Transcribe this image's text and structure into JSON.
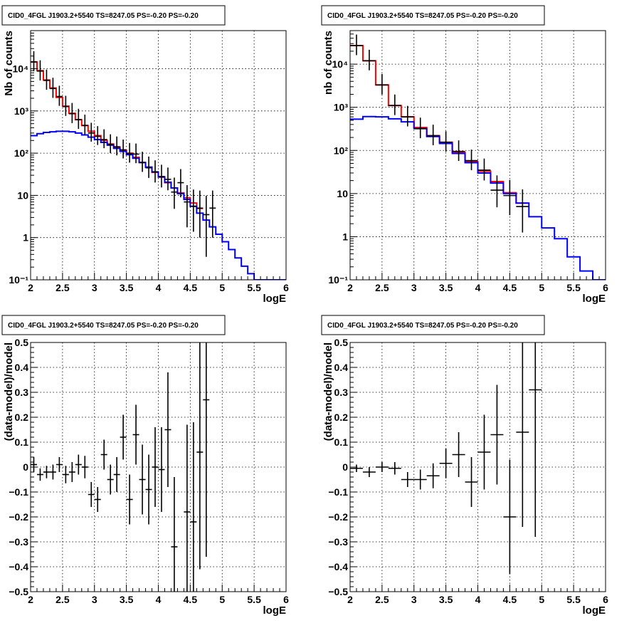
{
  "chart_data": [
    {
      "type": "line",
      "panel": "top-left",
      "title": "CID0_4FGL J1903.2+5540 TS=8247.05 PS=-0.20 PS=-0.20",
      "xlabel": "logE",
      "ylabel": "Nb of counts",
      "yscale": "log",
      "xlim": [
        2,
        6
      ],
      "ylim": [
        0.1,
        80000
      ],
      "xticks": [
        2,
        2.5,
        3,
        3.5,
        4,
        4.5,
        5,
        5.5,
        6
      ],
      "xtick_labels": [
        "2",
        "2.5",
        "3",
        "3.5",
        "4",
        "4.5",
        "5",
        "5.5",
        "6"
      ],
      "yticks": [
        0.1,
        1,
        10,
        100,
        1000,
        10000
      ],
      "ytick_labels": [
        "10⁻¹",
        "1",
        "10",
        "10²",
        "10³",
        "10⁴"
      ],
      "grid": true,
      "bin_edges": [
        2.0,
        2.1,
        2.2,
        2.3,
        2.4,
        2.5,
        2.6,
        2.7,
        2.8,
        2.9,
        3.0,
        3.1,
        3.2,
        3.3,
        3.4,
        3.5,
        3.6,
        3.7,
        3.8,
        3.9,
        4.0,
        4.1,
        4.2,
        4.3,
        4.4,
        4.5,
        4.6,
        4.7,
        4.8,
        4.9,
        5.0,
        5.1,
        5.2,
        5.3,
        5.4,
        5.5,
        5.6,
        5.7,
        5.8,
        5.9,
        6.0
      ],
      "series": [
        {
          "color": "#ff0000",
          "style": "step",
          "values": [
            14500,
            9000,
            5400,
            3500,
            2100,
            1300,
            880,
            620,
            450,
            330,
            260,
            200,
            165,
            140,
            118,
            100,
            80,
            60,
            46,
            35,
            27,
            20,
            15,
            11.5,
            8.8,
            6.6,
            4.9,
            null,
            null,
            null,
            null,
            null,
            null,
            null,
            null,
            null,
            null,
            null,
            null,
            null
          ]
        },
        {
          "color": "#0000ff",
          "style": "step",
          "values": [
            260,
            290,
            310,
            320,
            330,
            330,
            320,
            300,
            270,
            240,
            210,
            180,
            155,
            130,
            110,
            92,
            76,
            60,
            47,
            36,
            27.5,
            20.5,
            15,
            11,
            8,
            5.5,
            3.8,
            2.6,
            1.8,
            1.2,
            0.8,
            0.52,
            0.33,
            0.21,
            0.14,
            0.1,
            0.1,
            0.1,
            0.1,
            0.1
          ]
        },
        {
          "color": "#000000",
          "style": "errorbar",
          "points": [
            [
              2.05,
              14500,
              0.8
            ],
            [
              2.15,
              8800,
              0.8
            ],
            [
              2.25,
              5300,
              0.8
            ],
            [
              2.35,
              3400,
              0.8
            ],
            [
              2.45,
              2200,
              0.8
            ],
            [
              2.55,
              1270,
              0.8
            ],
            [
              2.65,
              860,
              0.8
            ],
            [
              2.75,
              625,
              0.8
            ],
            [
              2.85,
              455,
              0.8
            ],
            [
              2.95,
              300,
              0.75
            ],
            [
              3.05,
              250,
              0.75
            ],
            [
              3.15,
              210,
              0.75
            ],
            [
              3.25,
              160,
              0.75
            ],
            [
              3.35,
              142,
              0.75
            ],
            [
              3.45,
              120,
              0.75
            ],
            [
              3.55,
              98,
              0.78
            ],
            [
              3.65,
              95,
              0.78
            ],
            [
              3.75,
              60,
              0.8
            ],
            [
              3.85,
              45,
              0.85
            ],
            [
              3.95,
              36,
              0.88
            ],
            [
              4.05,
              28,
              0.9
            ],
            [
              4.15,
              24,
              0.9
            ],
            [
              4.25,
              12,
              1.2
            ],
            [
              4.35,
              20,
              1.1
            ],
            [
              4.45,
              7,
              1.5
            ],
            [
              4.55,
              5.5,
              1.5
            ],
            [
              4.65,
              5,
              1.6
            ],
            [
              4.75,
              3.5,
              1.8
            ],
            [
              4.85,
              5,
              1.6
            ]
          ]
        }
      ]
    },
    {
      "type": "line",
      "panel": "top-right",
      "title": "CID0_4FGL J1903.2+5540 TS=8247.05 PS=-0.20 PS=-0.20",
      "xlabel": "logE",
      "ylabel": "nb of counts",
      "yscale": "log",
      "xlim": [
        2,
        6
      ],
      "ylim": [
        0.1,
        60000
      ],
      "xticks": [
        2,
        2.5,
        3,
        3.5,
        4,
        4.5,
        5,
        5.5,
        6
      ],
      "xtick_labels": [
        "2",
        "2.5",
        "3",
        "3.5",
        "4",
        "4.5",
        "5",
        "5.5",
        "6"
      ],
      "yticks": [
        0.1,
        1,
        10,
        100,
        1000,
        10000
      ],
      "ytick_labels": [
        "10⁻¹",
        "1",
        "10",
        "10²",
        "10³",
        "10⁴"
      ],
      "grid": true,
      "bin_edges": [
        2.0,
        2.2,
        2.4,
        2.6,
        2.8,
        3.0,
        3.2,
        3.4,
        3.6,
        3.8,
        4.0,
        4.2,
        4.4,
        4.6,
        4.8,
        5.0,
        5.2,
        5.4,
        5.6,
        5.8,
        6.0
      ],
      "series": [
        {
          "color": "#ff0000",
          "style": "step",
          "values": [
            27000,
            12000,
            3300,
            1100,
            600,
            340,
            220,
            155,
            90,
            55,
            33,
            19,
            10.5,
            6,
            null,
            null,
            null,
            null,
            null,
            null
          ]
        },
        {
          "color": "#0000ff",
          "style": "step",
          "values": [
            530,
            610,
            600,
            540,
            460,
            320,
            210,
            145,
            85,
            52,
            30,
            17.5,
            10,
            6,
            2.9,
            1.6,
            0.9,
            0.34,
            0.16,
            0.1
          ]
        },
        {
          "color": "#000000",
          "style": "errorbar",
          "points": [
            [
              2.1,
              27000,
              0.8
            ],
            [
              2.3,
              12000,
              0.8
            ],
            [
              2.5,
              3300,
              0.8
            ],
            [
              2.7,
              1100,
              0.8
            ],
            [
              2.9,
              600,
              0.8
            ],
            [
              3.1,
              320,
              0.8
            ],
            [
              3.3,
              220,
              0.8
            ],
            [
              3.5,
              155,
              0.8
            ],
            [
              3.7,
              95,
              0.8
            ],
            [
              3.9,
              58,
              0.8
            ],
            [
              4.1,
              35,
              0.85
            ],
            [
              4.3,
              12,
              1.2
            ],
            [
              4.5,
              9,
              1.3
            ],
            [
              4.7,
              5,
              1.5
            ]
          ]
        }
      ]
    },
    {
      "type": "scatter",
      "panel": "bottom-left",
      "title": "CID0_4FGL J1903.2+5540 TS=8247.05 PS=-0.20 PS=-0.20",
      "xlabel": "logE",
      "ylabel": "(data-model)/model",
      "xlim": [
        2,
        6
      ],
      "ylim": [
        -0.5,
        0.5
      ],
      "xticks": [
        2,
        2.5,
        3,
        3.5,
        4,
        4.5,
        5,
        5.5,
        6
      ],
      "xtick_labels": [
        "2",
        "2.5",
        "3",
        "3.5",
        "4",
        "4.5",
        "5",
        "5.5",
        "6"
      ],
      "yticks": [
        -0.5,
        -0.4,
        -0.3,
        -0.2,
        -0.1,
        0,
        0.1,
        0.2,
        0.3,
        0.4,
        0.5
      ],
      "ytick_labels": [
        "−0.5",
        "−0.4",
        "−0.3",
        "−0.2",
        "−0.1",
        "0",
        "0.1",
        "0.2",
        "0.3",
        "0.4",
        "0.5"
      ],
      "grid": true,
      "points": [
        [
          2.05,
          0.01,
          0.03
        ],
        [
          2.15,
          -0.03,
          0.025
        ],
        [
          2.25,
          -0.02,
          0.025
        ],
        [
          2.35,
          -0.02,
          0.03
        ],
        [
          2.45,
          0.01,
          0.03
        ],
        [
          2.55,
          -0.03,
          0.035
        ],
        [
          2.65,
          -0.02,
          0.04
        ],
        [
          2.75,
          0.01,
          0.04
        ],
        [
          2.85,
          0.0,
          0.045
        ],
        [
          2.95,
          -0.11,
          0.05
        ],
        [
          3.05,
          -0.13,
          0.05
        ],
        [
          3.15,
          0.05,
          0.06
        ],
        [
          3.25,
          -0.05,
          0.06
        ],
        [
          3.35,
          -0.03,
          0.07
        ],
        [
          3.45,
          0.12,
          0.09
        ],
        [
          3.55,
          -0.13,
          0.1
        ],
        [
          3.65,
          0.13,
          0.12
        ],
        [
          3.75,
          -0.05,
          0.14
        ],
        [
          3.85,
          -0.09,
          0.14
        ],
        [
          3.95,
          0.0,
          0.16
        ],
        [
          4.05,
          -0.01,
          0.17
        ],
        [
          4.15,
          0.15,
          0.23
        ],
        [
          4.25,
          -0.32,
          0.28
        ],
        [
          4.45,
          -0.18,
          0.35
        ],
        [
          4.55,
          -0.22,
          0.4
        ],
        [
          4.65,
          0.06,
          0.47
        ],
        [
          4.75,
          0.27,
          0.63
        ]
      ]
    },
    {
      "type": "scatter",
      "panel": "bottom-right",
      "title": "CID0_4FGL J1903.2+5540 TS=8247.05 PS=-0.20 PS=-0.20",
      "xlabel": "logE",
      "ylabel": "(data-model)/model",
      "xlim": [
        2,
        6
      ],
      "ylim": [
        -0.5,
        0.5
      ],
      "xticks": [
        2,
        2.5,
        3,
        3.5,
        4,
        4.5,
        5,
        5.5,
        6
      ],
      "xtick_labels": [
        "2",
        "2.5",
        "3",
        "3.5",
        "4",
        "4.5",
        "5",
        "5.5",
        "6"
      ],
      "yticks": [
        -0.5,
        -0.4,
        -0.3,
        -0.2,
        -0.1,
        0,
        0.1,
        0.2,
        0.3,
        0.4,
        0.5
      ],
      "ytick_labels": [
        "−0.5",
        "−0.4",
        "−0.3",
        "−0.2",
        "−0.1",
        "0",
        "0.1",
        "0.2",
        "0.3",
        "0.4",
        "0.5"
      ],
      "grid": true,
      "points": [
        [
          2.1,
          -0.005,
          0.015
        ],
        [
          2.3,
          -0.02,
          0.02
        ],
        [
          2.5,
          0.0,
          0.02
        ],
        [
          2.7,
          -0.005,
          0.025
        ],
        [
          2.9,
          -0.05,
          0.03
        ],
        [
          3.1,
          -0.05,
          0.04
        ],
        [
          3.3,
          -0.035,
          0.05
        ],
        [
          3.5,
          0.015,
          0.06
        ],
        [
          3.7,
          0.05,
          0.09
        ],
        [
          3.9,
          -0.06,
          0.1
        ],
        [
          4.1,
          0.06,
          0.15
        ],
        [
          4.3,
          0.13,
          0.2
        ],
        [
          4.5,
          -0.2,
          0.23
        ],
        [
          4.7,
          0.14,
          0.38
        ],
        [
          4.9,
          0.31,
          0.59
        ]
      ]
    }
  ]
}
